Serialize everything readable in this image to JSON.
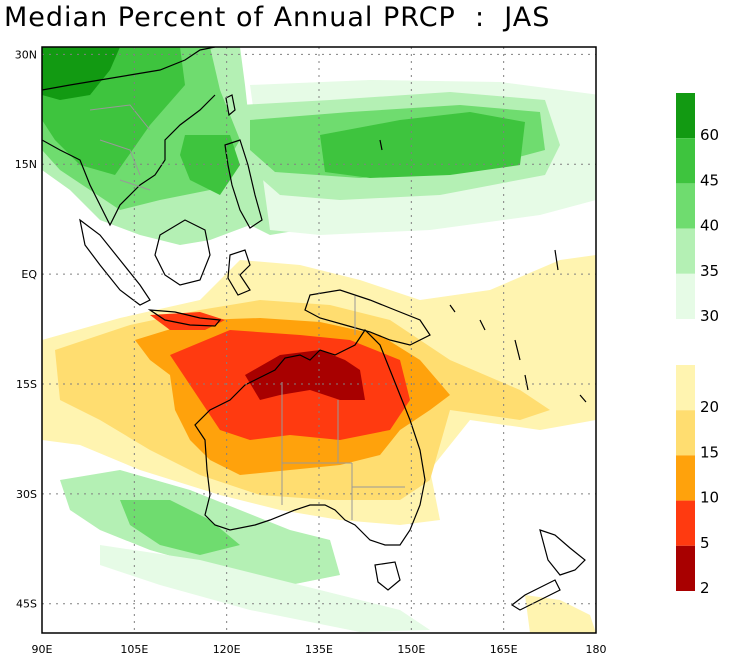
{
  "title": "Median Percent of Annual PRCP  :  JAS",
  "map": {
    "lon_range": [
      90,
      180
    ],
    "lat_range": [
      -49,
      31
    ],
    "x_ticks": [
      "90E",
      "105E",
      "120E",
      "135E",
      "150E",
      "165E",
      "180"
    ],
    "y_ticks": [
      "30N",
      "15N",
      "EQ",
      "15S",
      "30S",
      "45S"
    ],
    "x_tick_values": [
      90,
      105,
      120,
      135,
      150,
      165,
      180
    ],
    "y_tick_values": [
      30,
      15,
      0,
      -15,
      -30,
      -45
    ]
  },
  "colorbar": {
    "upper": {
      "labels": [
        "60",
        "45",
        "40",
        "35",
        "30"
      ],
      "colors": [
        "#129a12",
        "#3ec43e",
        "#6fdc6f",
        "#b4f0b4",
        "#e6fbe6"
      ]
    },
    "lower": {
      "labels": [
        "20",
        "15",
        "10",
        "5",
        "2"
      ],
      "colors": [
        "#fff4b0",
        "#ffdd70",
        "#ffa20c",
        "#ff3a10",
        "#a80000"
      ]
    }
  }
}
